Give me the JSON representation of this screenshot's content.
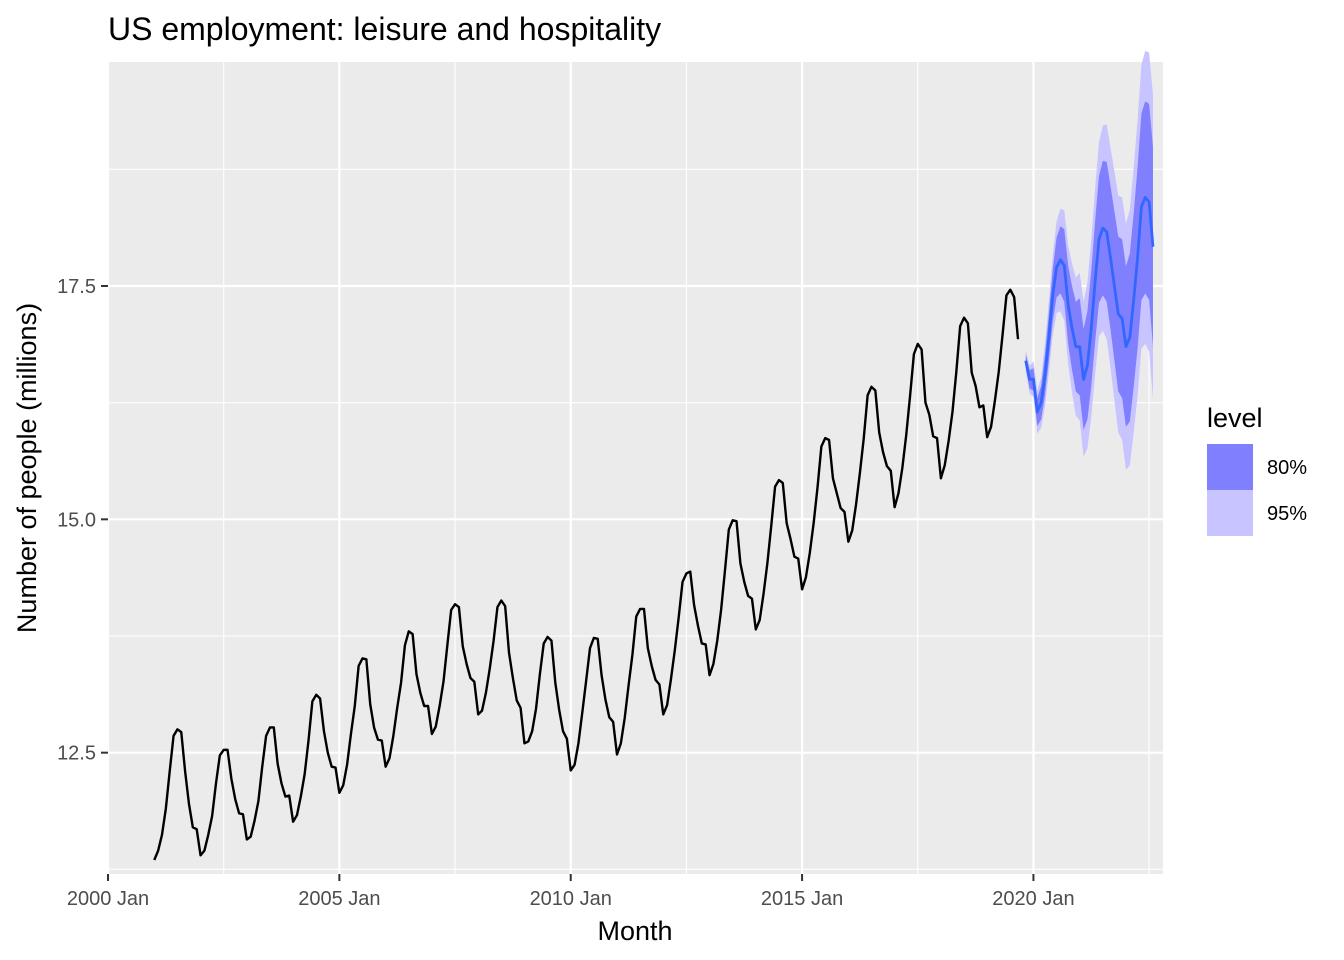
{
  "chart_data": {
    "type": "line",
    "title": "US employment: leisure and hospitality",
    "xlabel": "Month",
    "ylabel": "Number of people (millions)",
    "xlim": [
      2000.0,
      2022.8
    ],
    "ylim": [
      11.2,
      19.9
    ],
    "x_ticks": [
      {
        "value": 2000,
        "label": "2000 Jan"
      },
      {
        "value": 2005,
        "label": "2005 Jan"
      },
      {
        "value": 2010,
        "label": "2010 Jan"
      },
      {
        "value": 2015,
        "label": "2015 Jan"
      },
      {
        "value": 2020,
        "label": "2020 Jan"
      }
    ],
    "y_ticks": [
      {
        "value": 12.5,
        "label": "12.5"
      },
      {
        "value": 15.0,
        "label": "15.0"
      },
      {
        "value": 17.5,
        "label": "17.5"
      }
    ],
    "grid": true,
    "series": [
      {
        "color": "#000000",
        "start_year": 2001,
        "start_month": 1,
        "values": [
          11.35,
          11.45,
          11.62,
          11.9,
          12.3,
          12.68,
          12.75,
          12.72,
          12.3,
          11.95,
          11.7,
          11.68,
          11.4,
          11.45,
          11.62,
          11.82,
          12.17,
          12.47,
          12.53,
          12.53,
          12.22,
          12.0,
          11.85,
          11.84,
          11.57,
          11.6,
          11.77,
          11.98,
          12.35,
          12.68,
          12.77,
          12.77,
          12.38,
          12.17,
          12.03,
          12.04,
          11.76,
          11.83,
          12.03,
          12.27,
          12.63,
          13.05,
          13.12,
          13.08,
          12.73,
          12.5,
          12.35,
          12.34,
          12.07,
          12.15,
          12.37,
          12.7,
          13.0,
          13.43,
          13.51,
          13.5,
          13.02,
          12.77,
          12.64,
          12.63,
          12.35,
          12.44,
          12.68,
          12.98,
          13.25,
          13.65,
          13.8,
          13.77,
          13.34,
          13.14,
          13.0,
          13.0,
          12.7,
          12.78,
          13.0,
          13.26,
          13.65,
          14.03,
          14.09,
          14.06,
          13.64,
          13.45,
          13.3,
          13.26,
          12.91,
          12.95,
          13.14,
          13.4,
          13.7,
          14.06,
          14.13,
          14.07,
          13.57,
          13.3,
          13.06,
          12.98,
          12.6,
          12.62,
          12.73,
          12.97,
          13.34,
          13.67,
          13.74,
          13.7,
          13.25,
          12.96,
          12.73,
          12.65,
          12.31,
          12.37,
          12.6,
          12.93,
          13.27,
          13.62,
          13.73,
          13.72,
          13.33,
          13.07,
          12.88,
          12.83,
          12.48,
          12.6,
          12.87,
          13.22,
          13.55,
          13.96,
          14.04,
          14.04,
          13.62,
          13.43,
          13.28,
          13.23,
          12.91,
          13.01,
          13.29,
          13.6,
          13.95,
          14.33,
          14.42,
          14.44,
          14.08,
          13.86,
          13.67,
          13.66,
          13.33,
          13.45,
          13.7,
          14.03,
          14.45,
          14.89,
          14.99,
          14.98,
          14.53,
          14.33,
          14.18,
          14.15,
          13.82,
          13.92,
          14.2,
          14.53,
          14.93,
          15.35,
          15.42,
          15.39,
          14.96,
          14.79,
          14.6,
          14.58,
          14.25,
          14.38,
          14.64,
          14.96,
          15.34,
          15.78,
          15.87,
          15.85,
          15.44,
          15.28,
          15.12,
          15.08,
          14.76,
          14.88,
          15.16,
          15.5,
          15.87,
          16.33,
          16.42,
          16.38,
          15.93,
          15.72,
          15.57,
          15.52,
          15.13,
          15.28,
          15.55,
          15.9,
          16.32,
          16.77,
          16.88,
          16.82,
          16.25,
          16.12,
          15.89,
          15.87,
          15.44,
          15.58,
          15.84,
          16.15,
          16.58,
          17.07,
          17.16,
          17.1,
          16.57,
          16.43,
          16.2,
          16.22,
          15.88,
          15.99,
          16.27,
          16.58,
          16.98,
          17.4,
          17.46,
          17.38,
          16.93
        ]
      }
    ],
    "forecast": {
      "color": "#3366ff",
      "start_year": 2019,
      "start_month": 11,
      "mean": [
        16.7,
        16.5,
        16.5,
        16.15,
        16.25,
        16.55,
        16.95,
        17.4,
        17.7,
        17.78,
        17.72,
        17.3,
        17.05,
        16.85,
        16.85,
        16.5,
        16.65,
        17.05,
        17.55,
        18.0,
        18.12,
        18.08,
        17.8,
        17.5,
        17.2,
        17.15,
        16.85,
        16.95,
        17.35,
        17.8,
        18.35,
        18.45,
        18.4,
        17.92
      ],
      "lo80": [
        16.63,
        16.4,
        16.38,
        16.0,
        16.07,
        16.33,
        16.7,
        17.12,
        17.38,
        17.42,
        17.33,
        16.88,
        16.6,
        16.37,
        16.33,
        15.96,
        16.07,
        16.43,
        16.9,
        17.32,
        17.4,
        17.33,
        17.03,
        16.7,
        16.37,
        16.3,
        15.99,
        16.05,
        16.42,
        16.83,
        17.35,
        17.42,
        17.35,
        16.85
      ],
      "hi80": [
        16.77,
        16.6,
        16.62,
        16.3,
        16.43,
        16.77,
        17.2,
        17.68,
        18.02,
        18.14,
        18.11,
        17.72,
        17.5,
        17.33,
        17.37,
        17.04,
        17.23,
        17.67,
        18.2,
        18.68,
        18.84,
        18.83,
        18.57,
        18.3,
        18.03,
        18.0,
        17.71,
        17.85,
        18.28,
        18.77,
        19.35,
        19.48,
        19.45,
        18.99
      ],
      "lo95": [
        16.59,
        16.35,
        16.31,
        15.92,
        15.98,
        16.21,
        16.57,
        16.97,
        17.21,
        17.23,
        17.13,
        16.66,
        16.36,
        16.11,
        16.06,
        15.67,
        15.76,
        16.1,
        16.55,
        16.96,
        17.02,
        16.93,
        16.62,
        16.27,
        15.93,
        15.85,
        15.53,
        15.58,
        15.93,
        16.32,
        16.83,
        16.88,
        16.8,
        16.29
      ],
      "hi95": [
        16.81,
        16.65,
        16.69,
        16.38,
        16.52,
        16.89,
        17.33,
        17.83,
        18.19,
        18.33,
        18.31,
        17.94,
        17.74,
        17.59,
        17.64,
        17.33,
        17.54,
        18.0,
        18.55,
        19.04,
        19.22,
        19.23,
        18.98,
        18.73,
        18.47,
        18.45,
        18.17,
        18.32,
        18.77,
        19.28,
        19.87,
        20.02,
        20.0,
        19.55
      ]
    },
    "legend": {
      "title": "level",
      "position": "right",
      "items": [
        {
          "label": "80%",
          "color": "#8080ff"
        },
        {
          "label": "95%",
          "color": "#c8c4ff"
        }
      ]
    }
  }
}
